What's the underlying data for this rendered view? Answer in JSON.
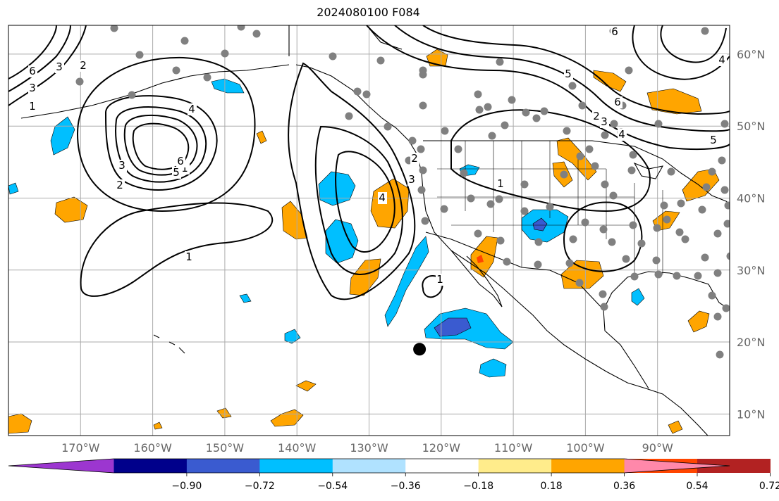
{
  "title": "2024080100 F084",
  "map": {
    "extent": {
      "lon": [
        -180,
        -80
      ],
      "lat": [
        7,
        64
      ]
    },
    "lon_ticks": [
      {
        "value": -170,
        "label": "170°W"
      },
      {
        "value": -160,
        "label": "160°W"
      },
      {
        "value": -150,
        "label": "150°W"
      },
      {
        "value": -140,
        "label": "140°W"
      },
      {
        "value": -130,
        "label": "130°W"
      },
      {
        "value": -120,
        "label": "120°W"
      },
      {
        "value": -110,
        "label": "110°W"
      },
      {
        "value": -100,
        "label": "100°W"
      },
      {
        "value": -90,
        "label": "90°W"
      }
    ],
    "lat_ticks": [
      {
        "value": 10,
        "label": "10°N"
      },
      {
        "value": 20,
        "label": "20°N"
      },
      {
        "value": 30,
        "label": "30°N"
      },
      {
        "value": 40,
        "label": "40°N"
      },
      {
        "value": 50,
        "label": "50°N"
      },
      {
        "value": 60,
        "label": "60°N"
      }
    ],
    "contour_labels": [
      "1",
      "1",
      "1",
      "1",
      "1",
      "2",
      "2",
      "2",
      "2",
      "3",
      "3",
      "3",
      "3",
      "3",
      "4",
      "4",
      "4",
      "4",
      "5",
      "5",
      "5",
      "6",
      "6",
      "6",
      "6"
    ],
    "marker": {
      "lon": -123,
      "lat": 19
    }
  },
  "colorbar": {
    "colors": [
      "#9c36d0",
      "#00008b",
      "#3a5bd0",
      "#00bfff",
      "#b0e2ff",
      "#ffffff",
      "#ffec8b",
      "#ffa500",
      "#ff4500",
      "#b22222",
      "#ff88aa"
    ],
    "ticks": [
      "−0.90",
      "−0.72",
      "−0.54",
      "−0.36",
      "−0.18",
      "0.18",
      "0.36",
      "0.54",
      "0.72",
      "0.90"
    ]
  },
  "colors": {
    "positive": "#ffa500",
    "negative": "#00bfff",
    "strong_negative": "#3a5bd0",
    "station": "#808080"
  }
}
